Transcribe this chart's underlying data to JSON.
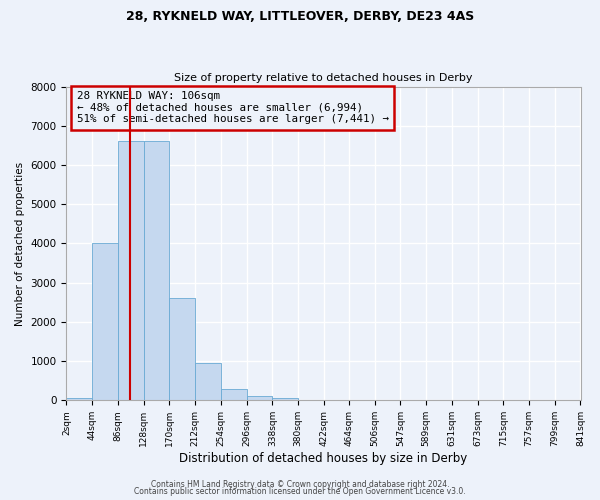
{
  "title1": "28, RYKNELD WAY, LITTLEOVER, DERBY, DE23 4AS",
  "title2": "Size of property relative to detached houses in Derby",
  "xlabel": "Distribution of detached houses by size in Derby",
  "ylabel": "Number of detached properties",
  "bin_edges": [
    2,
    44,
    86,
    128,
    170,
    212,
    254,
    296,
    338,
    380,
    422,
    464,
    506,
    547,
    589,
    631,
    673,
    715,
    757,
    799,
    841
  ],
  "bin_counts": [
    50,
    4000,
    6600,
    6600,
    2600,
    950,
    300,
    120,
    50,
    10,
    0,
    0,
    0,
    0,
    0,
    0,
    0,
    0,
    0,
    0
  ],
  "bar_color": "#c5d8ef",
  "bar_edgecolor": "#6aaad4",
  "vline_x": 106,
  "vline_color": "#cc0000",
  "ylim": [
    0,
    8000
  ],
  "annotation_text": "28 RYKNELD WAY: 106sqm\n← 48% of detached houses are smaller (6,994)\n51% of semi-detached houses are larger (7,441) →",
  "annotation_box_edgecolor": "#cc0000",
  "footer_text1": "Contains HM Land Registry data © Crown copyright and database right 2024.",
  "footer_text2": "Contains public sector information licensed under the Open Government Licence v3.0.",
  "bg_color": "#edf2fa",
  "grid_color": "#ffffff",
  "spine_color": "#aaaaaa"
}
